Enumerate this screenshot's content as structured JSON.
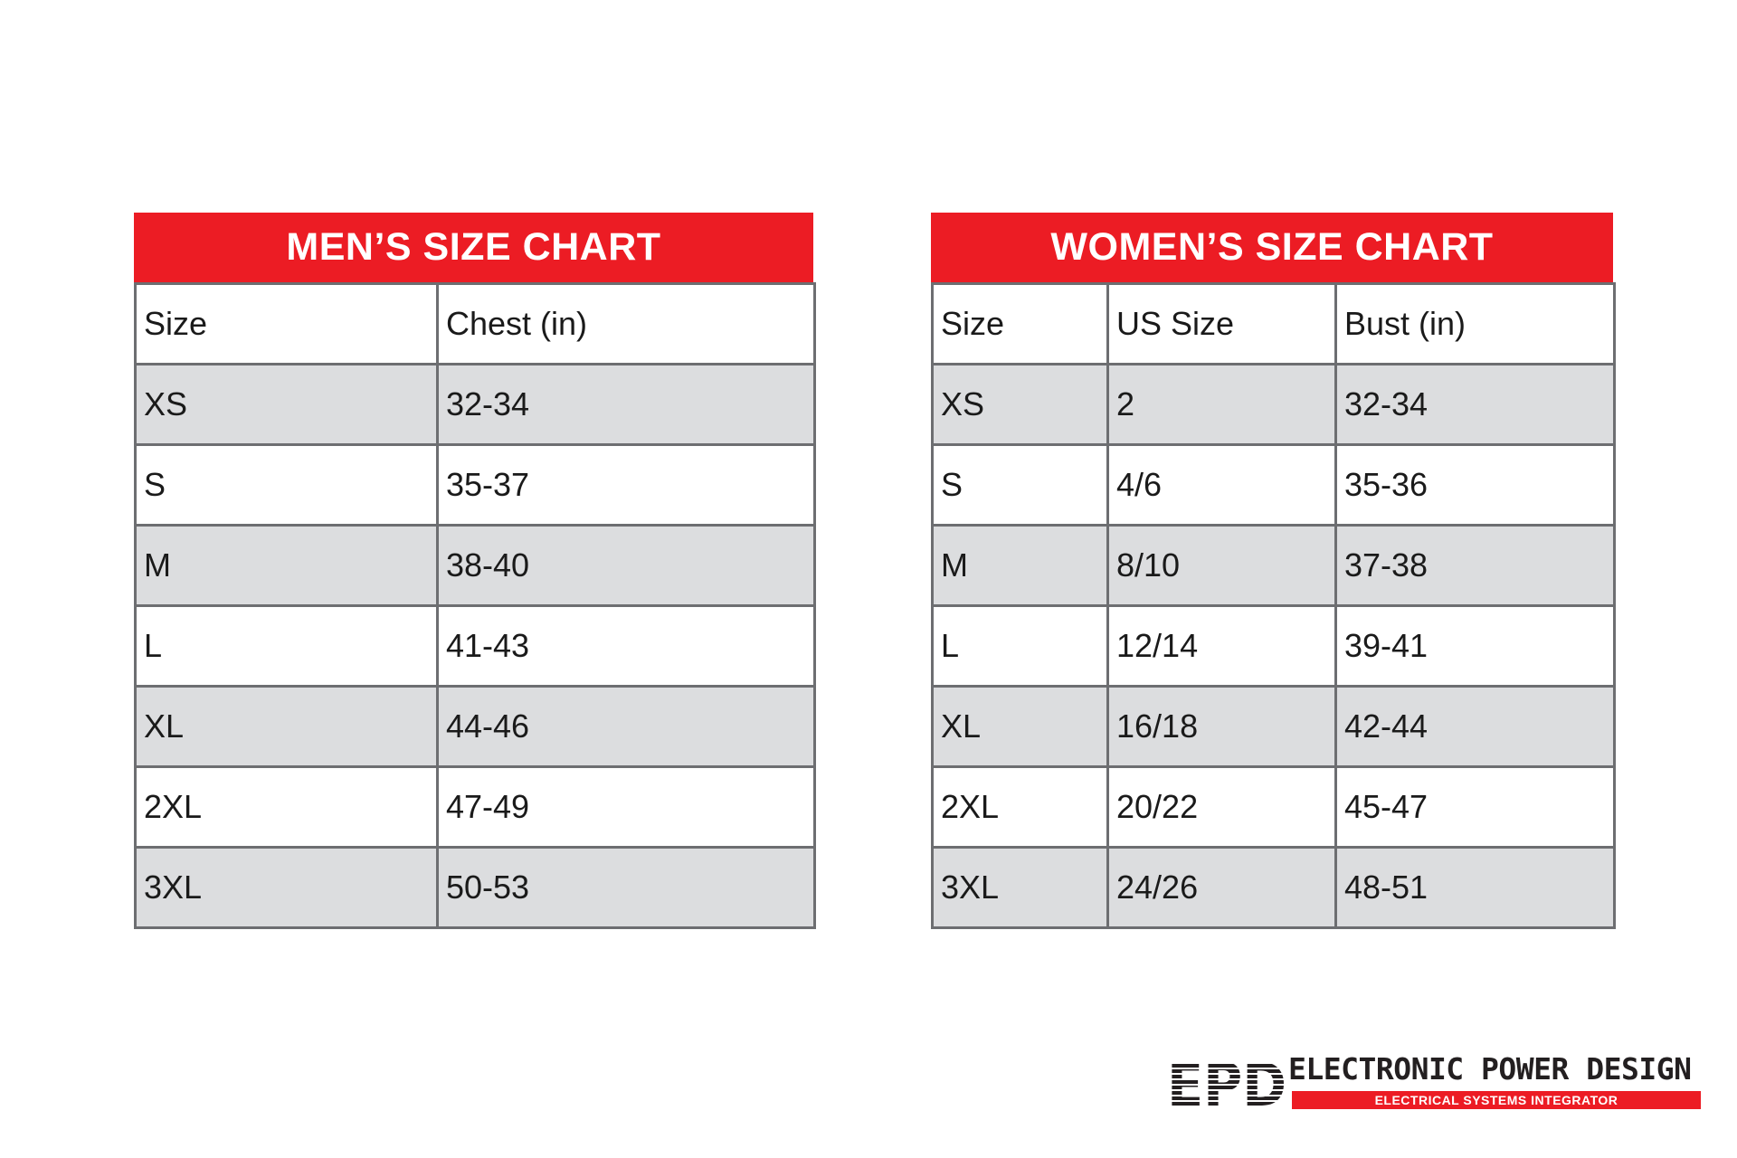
{
  "men_chart": {
    "title": "MEN’S SIZE CHART",
    "columns": [
      "Size",
      "Chest (in)"
    ],
    "rows": [
      [
        "XS",
        "32-34"
      ],
      [
        "S",
        "35-37"
      ],
      [
        "M",
        "38-40"
      ],
      [
        "L",
        "41-43"
      ],
      [
        "XL",
        "44-46"
      ],
      [
        "2XL",
        "47-49"
      ],
      [
        "3XL",
        "50-53"
      ]
    ]
  },
  "women_chart": {
    "title": "WOMEN’S SIZE CHART",
    "columns": [
      "Size",
      "US Size",
      "Bust (in)"
    ],
    "rows": [
      [
        "XS",
        "2",
        "32-34"
      ],
      [
        "S",
        "4/6",
        "35-36"
      ],
      [
        "M",
        "8/10",
        "37-38"
      ],
      [
        "L",
        "12/14",
        "39-41"
      ],
      [
        "XL",
        "16/18",
        "42-44"
      ],
      [
        "2XL",
        "20/22",
        "45-47"
      ],
      [
        "3XL",
        "24/26",
        "48-51"
      ]
    ]
  },
  "logo": {
    "mark": "EPD",
    "name": "ELECTRONIC POWER DESIGN",
    "tagline": "ELECTRICAL SYSTEMS INTEGRATOR"
  },
  "colors": {
    "accent_red": "#ec1c24",
    "row_shade": "#dcdddf",
    "border_gray": "#6d6e71"
  }
}
